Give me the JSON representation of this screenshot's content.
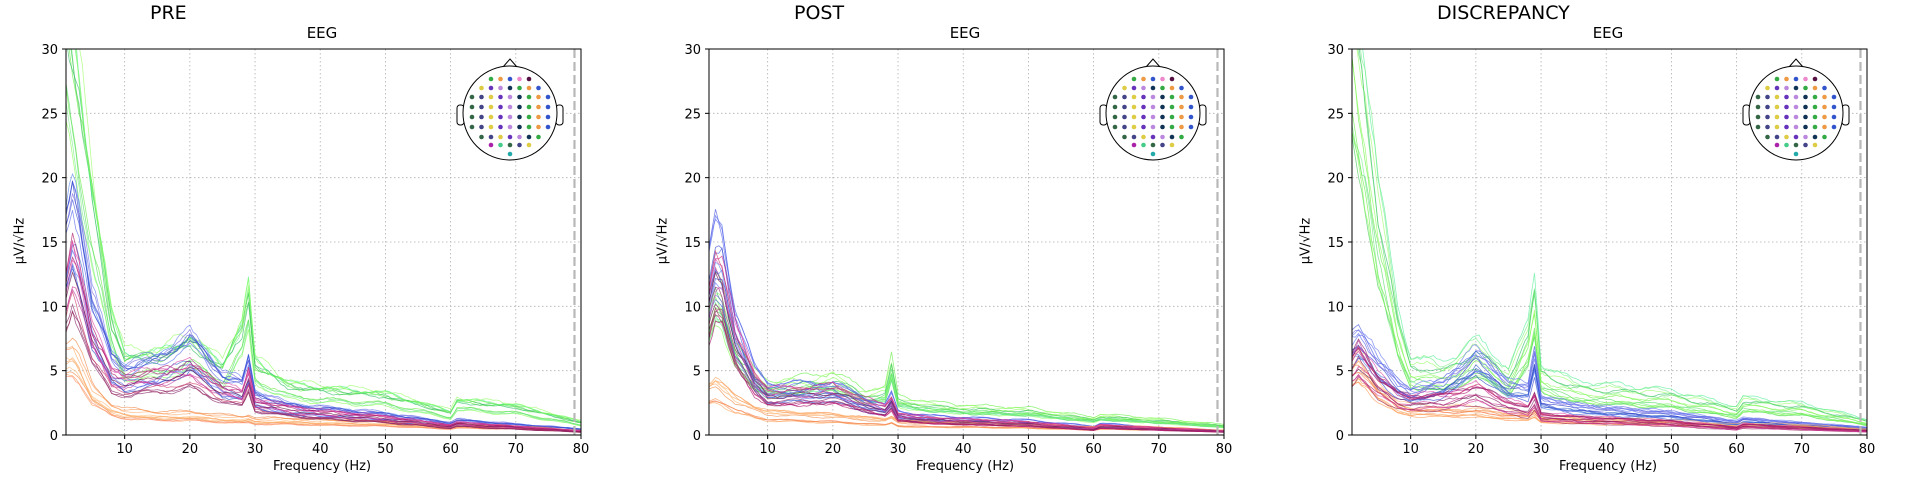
{
  "figure": {
    "panels": [
      {
        "suptitle": "PRE",
        "title": "EEG",
        "xlabel": "Frequency (Hz)",
        "ylabel": "µV/√Hz"
      },
      {
        "suptitle": "POST",
        "title": "EEG",
        "xlabel": "Frequency (Hz)",
        "ylabel": "µV/√Hz"
      },
      {
        "suptitle": "DISCREPANCY",
        "title": "EEG",
        "xlabel": "Frequency (Hz)",
        "ylabel": "µV/√Hz"
      }
    ]
  },
  "colors": {
    "grid": "#b0b0b0",
    "cutoff_line": "#b8b8b8",
    "head_outline": "#000000"
  },
  "chart_data": [
    {
      "type": "line",
      "title": "EEG",
      "xlabel": "Frequency (Hz)",
      "ylabel": "µV/√Hz",
      "xlim": [
        1,
        80
      ],
      "ylim": [
        0,
        30
      ],
      "xticks": [
        10,
        20,
        30,
        40,
        50,
        60,
        70,
        80
      ],
      "yticks": [
        0,
        5,
        10,
        15,
        20,
        25,
        30
      ],
      "grid": true,
      "vline": 79,
      "inset": "sensor topomap (top-right)",
      "representative_traces": [
        {
          "group": "frontal-green",
          "x": [
            1,
            2,
            3,
            5,
            8,
            10,
            15,
            20,
            25,
            28,
            29,
            30,
            35,
            40,
            50,
            60,
            61,
            70,
            80
          ],
          "y": [
            30,
            27,
            24,
            17,
            8,
            5.5,
            5.5,
            6.5,
            4.8,
            7.5,
            10,
            5,
            3.5,
            3.2,
            2.8,
            1.6,
            2.4,
            2,
            0.9
          ]
        },
        {
          "group": "occipital-blue",
          "x": [
            1,
            2,
            3,
            5,
            8,
            10,
            15,
            20,
            25,
            28,
            29,
            30,
            35,
            40,
            50,
            60,
            61,
            70,
            80
          ],
          "y": [
            14,
            16.5,
            15,
            9,
            5.2,
            4.5,
            5,
            6.5,
            4,
            3.5,
            5,
            2.8,
            2,
            1.8,
            1.4,
            0.8,
            1,
            0.7,
            0.4
          ]
        },
        {
          "group": "temporal-orange",
          "x": [
            1,
            2,
            3,
            5,
            8,
            10,
            15,
            20,
            25,
            28,
            29,
            30,
            35,
            40,
            50,
            60,
            61,
            70,
            80
          ],
          "y": [
            6,
            6.2,
            5.5,
            3.2,
            2,
            1.7,
            1.5,
            1.5,
            1.3,
            1.2,
            1.3,
            1.1,
            1.1,
            1,
            0.9,
            0.6,
            0.7,
            0.6,
            0.3
          ]
        },
        {
          "group": "parietal-magenta",
          "x": [
            1,
            2,
            3,
            5,
            8,
            10,
            15,
            20,
            25,
            28,
            29,
            30,
            35,
            40,
            50,
            60,
            61,
            70,
            80
          ],
          "y": [
            11,
            13.5,
            12,
            7.5,
            4.5,
            4.2,
            4.5,
            5,
            3.5,
            3,
            4.5,
            2.5,
            2,
            1.7,
            1.3,
            0.7,
            0.9,
            0.6,
            0.3
          ]
        }
      ]
    },
    {
      "type": "line",
      "title": "EEG",
      "xlabel": "Frequency (Hz)",
      "ylabel": "µV/√Hz",
      "xlim": [
        1,
        80
      ],
      "ylim": [
        0,
        30
      ],
      "xticks": [
        10,
        20,
        30,
        40,
        50,
        60,
        70,
        80
      ],
      "yticks": [
        0,
        5,
        10,
        15,
        20,
        25,
        30
      ],
      "grid": true,
      "vline": 79,
      "inset": "sensor topomap (top-right)",
      "representative_traces": [
        {
          "group": "frontal-green",
          "x": [
            1,
            2,
            3,
            5,
            8,
            10,
            15,
            20,
            25,
            28,
            29,
            30,
            35,
            40,
            50,
            60,
            61,
            70,
            80
          ],
          "y": [
            9,
            10.5,
            10,
            6.5,
            4.2,
            3.6,
            3.8,
            4.2,
            3,
            3.2,
            5.2,
            2.6,
            2.2,
            2,
            1.8,
            1.2,
            1.4,
            1.1,
            0.7
          ]
        },
        {
          "group": "occipital-blue",
          "x": [
            1,
            2,
            3,
            5,
            8,
            10,
            15,
            20,
            25,
            28,
            29,
            30,
            35,
            40,
            50,
            60,
            61,
            70,
            80
          ],
          "y": [
            12,
            14.5,
            14,
            8.5,
            4.5,
            3.5,
            3.5,
            3.5,
            2.5,
            2,
            2.8,
            1.6,
            1.3,
            1.2,
            1,
            0.6,
            0.8,
            0.5,
            0.3
          ]
        },
        {
          "group": "temporal-orange",
          "x": [
            1,
            2,
            3,
            5,
            8,
            10,
            15,
            20,
            25,
            28,
            29,
            30,
            35,
            40,
            50,
            60,
            61,
            70,
            80
          ],
          "y": [
            3.2,
            3.5,
            3.2,
            2.4,
            1.8,
            1.5,
            1.4,
            1.3,
            1.1,
            1,
            1.2,
            0.9,
            0.8,
            0.8,
            0.7,
            0.5,
            0.6,
            0.5,
            0.3
          ]
        },
        {
          "group": "parietal-magenta",
          "x": [
            1,
            2,
            3,
            5,
            8,
            10,
            15,
            20,
            25,
            28,
            29,
            30,
            35,
            40,
            50,
            60,
            61,
            70,
            80
          ],
          "y": [
            10,
            12.5,
            12,
            7.5,
            4.2,
            3.2,
            3.2,
            3.4,
            2.5,
            2,
            2.6,
            1.5,
            1.2,
            1.1,
            0.9,
            0.5,
            0.7,
            0.5,
            0.3
          ]
        }
      ]
    },
    {
      "type": "line",
      "title": "EEG",
      "xlabel": "Frequency (Hz)",
      "ylabel": "µV/√Hz",
      "xlim": [
        1,
        80
      ],
      "ylim": [
        0,
        30
      ],
      "xticks": [
        10,
        20,
        30,
        40,
        50,
        60,
        70,
        80
      ],
      "yticks": [
        0,
        5,
        10,
        15,
        20,
        25,
        30
      ],
      "grid": true,
      "vline": 79,
      "inset": "sensor topomap (top-right)",
      "representative_traces": [
        {
          "group": "frontal-green",
          "x": [
            1,
            2,
            3,
            5,
            8,
            10,
            15,
            20,
            25,
            28,
            29,
            30,
            35,
            40,
            50,
            60,
            61,
            70,
            80
          ],
          "y": [
            30,
            27,
            24,
            16,
            8,
            5,
            4.5,
            6,
            4.2,
            7,
            10,
            4.5,
            3.4,
            3.2,
            2.8,
            1.8,
            2.4,
            2,
            1
          ]
        },
        {
          "group": "occipital-blue",
          "x": [
            1,
            2,
            3,
            5,
            8,
            10,
            15,
            20,
            25,
            28,
            29,
            30,
            35,
            40,
            50,
            60,
            61,
            70,
            80
          ],
          "y": [
            6.5,
            7,
            6.5,
            5,
            3.5,
            3,
            3.5,
            5.5,
            3.5,
            3.2,
            5.5,
            2.5,
            2,
            1.8,
            1.5,
            0.9,
            1.1,
            0.8,
            0.5
          ]
        },
        {
          "group": "temporal-orange",
          "x": [
            1,
            2,
            3,
            5,
            8,
            10,
            15,
            20,
            25,
            28,
            29,
            30,
            35,
            40,
            50,
            60,
            61,
            70,
            80
          ],
          "y": [
            5,
            5.5,
            5,
            3.5,
            2.3,
            2,
            1.9,
            1.9,
            1.6,
            1.5,
            1.8,
            1.3,
            1.2,
            1.1,
            1,
            0.7,
            0.8,
            0.7,
            0.4
          ]
        },
        {
          "group": "parietal-magenta",
          "x": [
            1,
            2,
            3,
            5,
            8,
            10,
            15,
            20,
            25,
            28,
            29,
            30,
            35,
            40,
            50,
            60,
            61,
            70,
            80
          ],
          "y": [
            5,
            5.8,
            5.2,
            3.8,
            2.7,
            2.5,
            2.6,
            3.2,
            2.2,
            1.8,
            2.6,
            1.4,
            1.2,
            1.1,
            0.9,
            0.5,
            0.7,
            0.5,
            0.3
          ]
        }
      ]
    }
  ]
}
